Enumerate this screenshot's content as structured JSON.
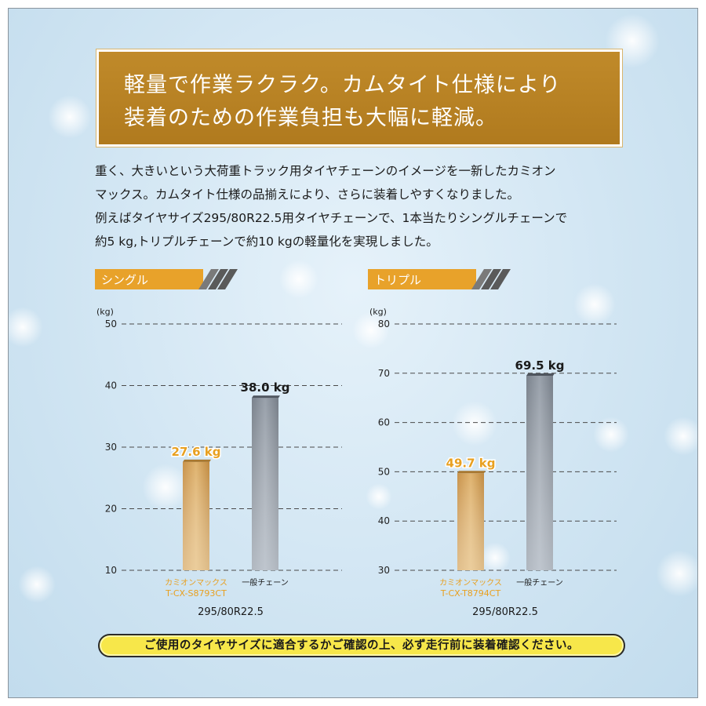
{
  "banner": {
    "text": "軽量で作業ラクラク。カムタイト仕様により\n装着のための作業負担も大幅に軽減。"
  },
  "body": {
    "text": "重く、大きいという大荷重トラック用タイヤチェーンのイメージを一新したカミオン\nマックス。カムタイト仕様の品揃えにより、さらに装着しやすくなりました。\n例えばタイヤサイズ295/80R22.5用タイヤチェーンで、1本当たりシングルチェーンで\n約5 kg,トリプルチェーンで約10 kgの軽量化を実現しました。"
  },
  "notice": {
    "text": "ご使用のタイヤサイズに適合するかご確認の上、必ず走行前に装着確認ください。"
  },
  "colors": {
    "banner": "#b07a1e",
    "tab": "#e8a22a",
    "highlight_bar": "#d9a85a",
    "highlight_label": "#e8a020",
    "regular_bar": "#8a929c",
    "notice_fill": "#f7e74a"
  },
  "chart_data": [
    {
      "type": "bar",
      "title": "シングル",
      "ylabel": "(kg)",
      "ylim": [
        10,
        50
      ],
      "yticks": [
        10,
        20,
        30,
        40,
        50
      ],
      "grid": true,
      "categories": [
        {
          "label": "カミオンマックス",
          "sublabel": "T-CX-S8793CT",
          "highlighted": true
        },
        {
          "label": "一般チェーン",
          "sublabel": "",
          "highlighted": false
        }
      ],
      "values": [
        27.6,
        38.0
      ],
      "value_labels": [
        "27.6 kg",
        "38.0 kg"
      ],
      "xlabel": "295/80R22.5"
    },
    {
      "type": "bar",
      "title": "トリプル",
      "ylabel": "(kg)",
      "ylim": [
        30,
        80
      ],
      "yticks": [
        30,
        40,
        50,
        60,
        70,
        80
      ],
      "grid": true,
      "categories": [
        {
          "label": "カミオンマックス",
          "sublabel": "T-CX-T8794CT",
          "highlighted": true
        },
        {
          "label": "一般チェーン",
          "sublabel": "",
          "highlighted": false
        }
      ],
      "values": [
        49.7,
        69.5
      ],
      "value_labels": [
        "49.7 kg",
        "69.5 kg"
      ],
      "xlabel": "295/80R22.5"
    }
  ]
}
